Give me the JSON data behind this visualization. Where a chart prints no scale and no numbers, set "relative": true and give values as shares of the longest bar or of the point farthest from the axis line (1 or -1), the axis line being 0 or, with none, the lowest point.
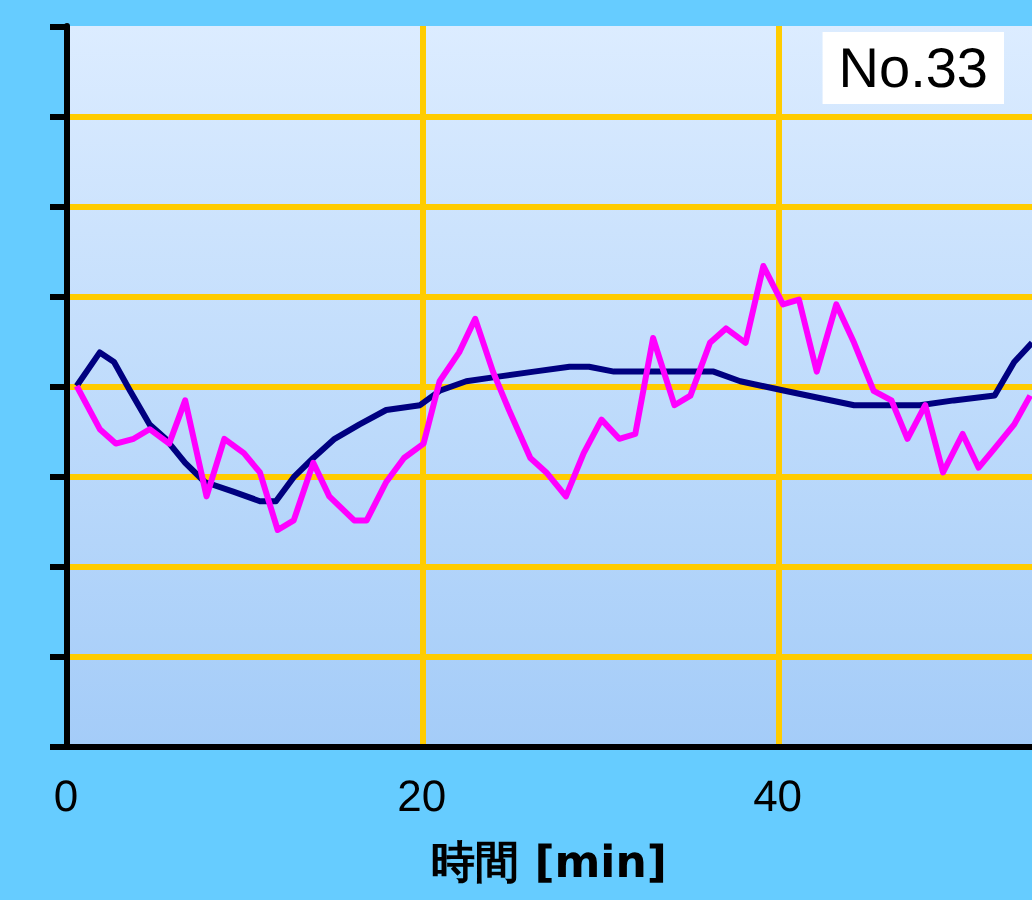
{
  "chart_data": {
    "type": "line",
    "title": "No.33",
    "xlabel": "時間 [min]",
    "relative": true,
    "xlim": [
      0,
      54.3
    ],
    "xticks": [
      0,
      20,
      40
    ],
    "grid": true,
    "marker": "none",
    "line_style": "solid",
    "series": [
      {
        "color": "#000080",
        "x": [
          0.6,
          1.9,
          2.7,
          3.6,
          4.7,
          5.6,
          6.7,
          7.8,
          9.4,
          10.9,
          11.8,
          12.8,
          13.9,
          15.1,
          16.5,
          18.0,
          19.9,
          21.0,
          22.5,
          24.4,
          26.3,
          28.3,
          29.4,
          30.8,
          33.0,
          34.5,
          36.4,
          37.9,
          40.4,
          44.3,
          46.1,
          48.0,
          49.9,
          52.2,
          53.3,
          54.3
        ],
        "values": [
          0.75,
          0.82,
          0.8,
          0.74,
          0.67,
          0.64,
          0.59,
          0.55,
          0.53,
          0.51,
          0.51,
          0.56,
          0.6,
          0.64,
          0.67,
          0.7,
          0.71,
          0.74,
          0.76,
          0.77,
          0.78,
          0.79,
          0.79,
          0.78,
          0.78,
          0.78,
          0.78,
          0.76,
          0.74,
          0.71,
          0.71,
          0.71,
          0.72,
          0.73,
          0.8,
          0.84
        ]
      },
      {
        "color": "#ff00ff",
        "x": [
          0.6,
          1.9,
          2.8,
          3.8,
          4.7,
          5.8,
          6.7,
          7.9,
          8.9,
          10.0,
          10.9,
          11.9,
          12.8,
          13.9,
          14.8,
          16.2,
          16.9,
          18.0,
          19.0,
          20.1,
          21.0,
          22.1,
          23.0,
          24.0,
          24.9,
          26.1,
          27.0,
          28.1,
          29.1,
          30.1,
          31.1,
          32.0,
          33.0,
          34.2,
          35.1,
          36.2,
          37.1,
          38.2,
          39.2,
          40.3,
          41.2,
          42.2,
          43.3,
          44.3,
          45.4,
          46.4,
          47.3,
          48.3,
          49.3,
          50.4,
          51.3,
          52.2,
          53.3,
          54.2
        ],
        "values": [
          0.75,
          0.66,
          0.63,
          0.64,
          0.66,
          0.63,
          0.72,
          0.52,
          0.64,
          0.61,
          0.57,
          0.45,
          0.47,
          0.59,
          0.52,
          0.47,
          0.47,
          0.55,
          0.6,
          0.63,
          0.76,
          0.82,
          0.89,
          0.78,
          0.7,
          0.6,
          0.57,
          0.52,
          0.61,
          0.68,
          0.64,
          0.65,
          0.85,
          0.71,
          0.73,
          0.84,
          0.87,
          0.84,
          1,
          0.92,
          0.93,
          0.78,
          0.92,
          0.84,
          0.74,
          0.72,
          0.64,
          0.71,
          0.57,
          0.65,
          0.58,
          0.62,
          0.67,
          0.73
        ]
      }
    ]
  }
}
